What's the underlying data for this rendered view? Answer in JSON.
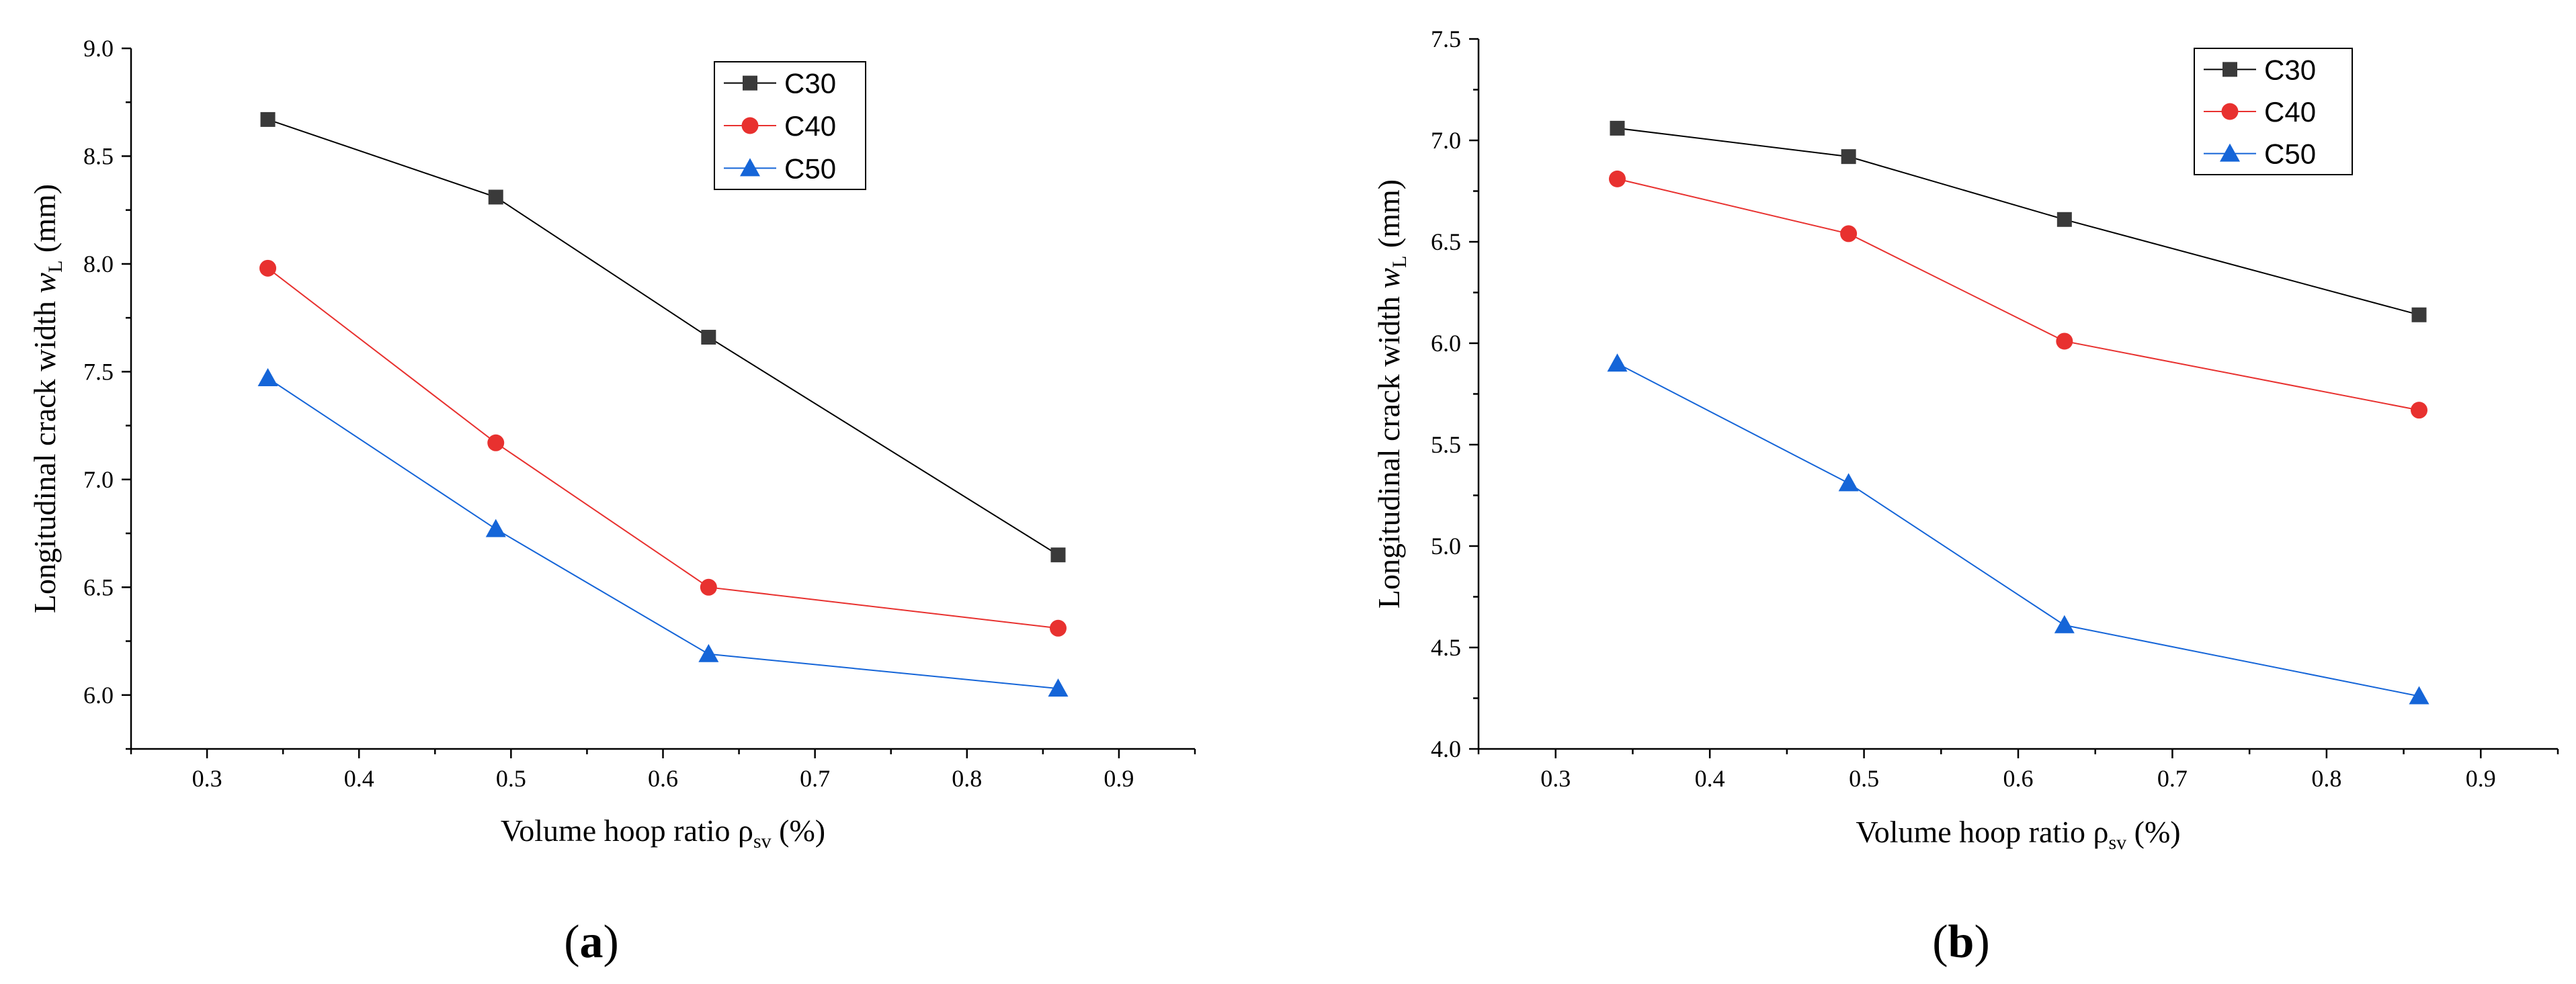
{
  "chart_data": [
    {
      "type": "line",
      "panel_label": "a",
      "x": [
        0.34,
        0.49,
        0.63,
        0.86
      ],
      "xlim": [
        0.25,
        0.95
      ],
      "ylim": [
        5.75,
        9.0
      ],
      "xticks": [
        0.3,
        0.4,
        0.5,
        0.6,
        0.7,
        0.8,
        0.9
      ],
      "yticks": [
        6.0,
        6.5,
        7.0,
        7.5,
        8.0,
        8.5,
        9.0
      ],
      "xlabel": "Volume hoop ratio ρ",
      "xlabel_sub": "sv",
      "xlabel_suffix": " (%)",
      "ylabel": "Longitudinal crack width ",
      "ylabel_var": "w",
      "ylabel_sub": "L",
      "ylabel_suffix": " (mm)",
      "legend_position": "top-right",
      "series": [
        {
          "name": "C30",
          "marker": "square",
          "line_color": "#000000",
          "marker_color": "#3a3a3a",
          "values": [
            8.67,
            8.31,
            7.66,
            6.65
          ]
        },
        {
          "name": "C40",
          "marker": "circle",
          "line_color": "#e8312f",
          "marker_color": "#e8312f",
          "values": [
            7.98,
            7.17,
            6.5,
            6.31
          ]
        },
        {
          "name": "C50",
          "marker": "triangle",
          "line_color": "#1565d8",
          "marker_color": "#1565d8",
          "values": [
            7.47,
            6.77,
            6.19,
            6.03
          ]
        }
      ]
    },
    {
      "type": "line",
      "panel_label": "b",
      "x": [
        0.34,
        0.49,
        0.63,
        0.86
      ],
      "xlim": [
        0.25,
        0.95
      ],
      "ylim": [
        4.0,
        7.5
      ],
      "xticks": [
        0.3,
        0.4,
        0.5,
        0.6,
        0.7,
        0.8,
        0.9
      ],
      "yticks": [
        4.0,
        4.5,
        5.0,
        5.5,
        6.0,
        6.5,
        7.0,
        7.5
      ],
      "xlabel": "Volume hoop ratio ρ",
      "xlabel_sub": "sv",
      "xlabel_suffix": " (%)",
      "ylabel": "Longitudinal crack width ",
      "ylabel_var": "w",
      "ylabel_sub": "L",
      "ylabel_suffix": " (mm)",
      "legend_position": "top-right",
      "series": [
        {
          "name": "C30",
          "marker": "square",
          "line_color": "#000000",
          "marker_color": "#3a3a3a",
          "values": [
            7.06,
            6.92,
            6.61,
            6.14
          ]
        },
        {
          "name": "C40",
          "marker": "circle",
          "line_color": "#e8312f",
          "marker_color": "#e8312f",
          "values": [
            6.81,
            6.54,
            6.01,
            5.67
          ]
        },
        {
          "name": "C50",
          "marker": "triangle",
          "line_color": "#1565d8",
          "marker_color": "#1565d8",
          "values": [
            5.9,
            5.31,
            4.61,
            4.26
          ]
        }
      ]
    }
  ]
}
